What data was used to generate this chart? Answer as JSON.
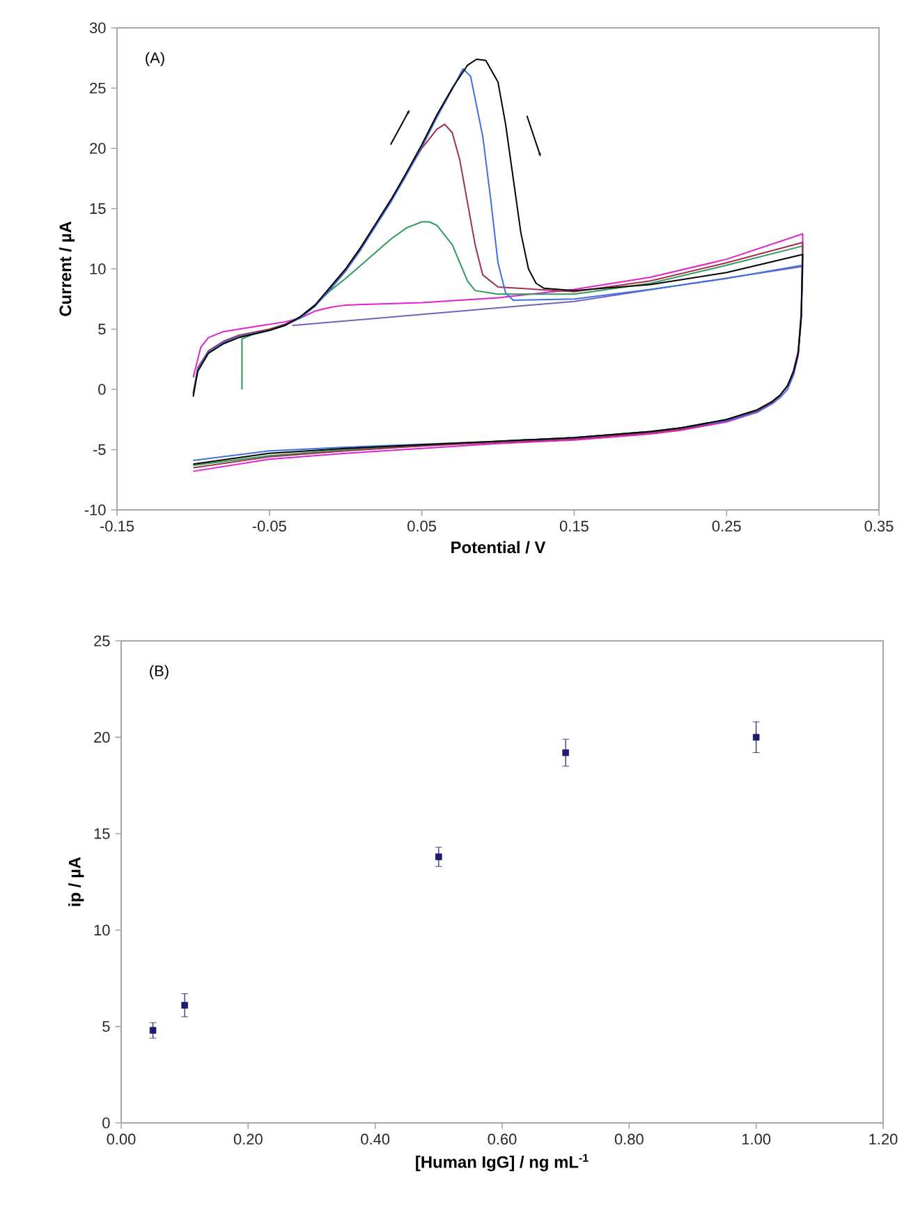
{
  "chart_data": [
    {
      "type": "line",
      "xlabel": "Potential / V",
      "ylabel": "Current / µA",
      "xlim": [
        -0.15,
        0.35
      ],
      "ylim": [
        -10,
        30
      ],
      "xticks": [
        -0.15,
        -0.05,
        0.05,
        0.15,
        0.25,
        0.35
      ],
      "yticks": [
        -10,
        -5,
        0,
        5,
        10,
        15,
        20,
        25,
        30
      ],
      "annotations": [
        "(A)"
      ],
      "series": [
        {
          "color": "#e020d0",
          "x": [
            -0.1,
            -0.095,
            -0.09,
            -0.08,
            -0.06,
            -0.04,
            -0.03,
            -0.02,
            -0.01,
            0,
            0.05,
            0.1,
            0.15,
            0.2,
            0.25,
            0.3,
            0.299,
            0.297,
            0.294,
            0.29,
            0.285,
            0.28,
            0.27,
            0.25,
            0.22,
            0.2,
            0.15,
            0.1,
            0.05,
            0,
            -0.05,
            -0.1
          ],
          "values": [
            1,
            3.5,
            4.3,
            4.8,
            5.2,
            5.6,
            5.9,
            6.5,
            6.8,
            7,
            7.2,
            7.6,
            8.3,
            9.3,
            10.8,
            12.9,
            6.5,
            3.2,
            1.6,
            0.3,
            -0.5,
            -1.1,
            -1.9,
            -2.7,
            -3.4,
            -3.7,
            -4.2,
            -4.5,
            -4.9,
            -5.3,
            -5.8,
            -6.8
          ]
        },
        {
          "color": "#7060c0",
          "x": [
            -0.035,
            0.15,
            0.3
          ],
          "values": [
            5.3,
            7.3,
            10.2
          ]
        },
        {
          "color": "#2e9a5a",
          "x": [
            -0.068,
            -0.068,
            -0.06,
            -0.05,
            -0.04,
            -0.03,
            -0.02,
            -0.01,
            0,
            0.01,
            0.02,
            0.03,
            0.04,
            0.05,
            0.055,
            0.06,
            0.07,
            0.075,
            0.08,
            0.085,
            0.1,
            0.15,
            0.2,
            0.25,
            0.3,
            0.299,
            0.297,
            0.294,
            0.29,
            0.285,
            0.28,
            0.27,
            0.25,
            0.22,
            0.2,
            0.15,
            0.1,
            0.05,
            0,
            -0.05,
            -0.1
          ],
          "values": [
            0,
            4.2,
            4.6,
            4.9,
            5.3,
            6,
            7,
            8.2,
            9.2,
            10.3,
            11.4,
            12.5,
            13.4,
            13.9,
            13.9,
            13.6,
            12,
            10.5,
            9,
            8.2,
            7.9,
            7.9,
            8.8,
            10.3,
            11.9,
            6,
            3,
            1.5,
            0.3,
            -0.5,
            -1,
            -1.7,
            -2.5,
            -3.2,
            -3.5,
            -4,
            -4.3,
            -4.7,
            -5,
            -5.5,
            -6.3
          ]
        },
        {
          "color": "#a0304f",
          "x": [
            -0.1,
            -0.097,
            -0.09,
            -0.08,
            -0.07,
            -0.05,
            -0.04,
            -0.03,
            -0.02,
            -0.01,
            0,
            0.01,
            0.02,
            0.03,
            0.04,
            0.05,
            0.06,
            0.065,
            0.07,
            0.075,
            0.08,
            0.085,
            0.09,
            0.1,
            0.15,
            0.2,
            0.25,
            0.3,
            0.299,
            0.297,
            0.294,
            0.29,
            0.285,
            0.28,
            0.27,
            0.25,
            0.22,
            0.2,
            0.15,
            0.1,
            0.05,
            0,
            -0.05,
            -0.1
          ],
          "values": [
            -0.3,
            1.8,
            3.2,
            4,
            4.5,
            5,
            5.4,
            6,
            7,
            8.4,
            9.9,
            11.7,
            13.7,
            15.7,
            17.9,
            20,
            21.6,
            22,
            21.3,
            19,
            15.5,
            12,
            9.5,
            8.5,
            8.1,
            9,
            10.5,
            12.2,
            6.2,
            3,
            1.5,
            0.3,
            -0.5,
            -1,
            -1.8,
            -2.6,
            -3.3,
            -3.6,
            -4.1,
            -4.4,
            -4.7,
            -5.1,
            -5.6,
            -6.5
          ]
        },
        {
          "color": "#3f6fe0",
          "x": [
            -0.1,
            -0.097,
            -0.09,
            -0.08,
            -0.07,
            -0.05,
            -0.04,
            -0.03,
            -0.02,
            -0.01,
            0,
            0.01,
            0.02,
            0.03,
            0.04,
            0.05,
            0.06,
            0.07,
            0.077,
            0.082,
            0.09,
            0.095,
            0.1,
            0.105,
            0.11,
            0.15,
            0.2,
            0.25,
            0.3,
            0.299,
            0.297,
            0.294,
            0.29,
            0.285,
            0.28,
            0.27,
            0.25,
            0.22,
            0.2,
            0.15,
            0.1,
            0.05,
            0,
            -0.05,
            -0.1
          ],
          "values": [
            -0.4,
            1.7,
            3.1,
            3.9,
            4.4,
            4.9,
            5.3,
            5.9,
            6.9,
            8.3,
            9.8,
            11.6,
            13.6,
            15.6,
            17.8,
            20.1,
            22.6,
            24.9,
            26.6,
            26,
            21,
            16,
            10.5,
            8,
            7.4,
            7.5,
            8.3,
            9.2,
            10.3,
            6,
            2.8,
            1.2,
            0,
            -0.7,
            -1.2,
            -1.9,
            -2.6,
            -3.2,
            -3.5,
            -4,
            -4.3,
            -4.55,
            -4.8,
            -5.1,
            -5.9
          ]
        },
        {
          "color": "#000000",
          "x": [
            -0.1,
            -0.097,
            -0.09,
            -0.08,
            -0.07,
            -0.05,
            -0.04,
            -0.03,
            -0.02,
            -0.01,
            0,
            0.01,
            0.02,
            0.03,
            0.04,
            0.05,
            0.06,
            0.07,
            0.08,
            0.086,
            0.092,
            0.1,
            0.105,
            0.11,
            0.115,
            0.12,
            0.125,
            0.13,
            0.15,
            0.2,
            0.25,
            0.3,
            0.299,
            0.297,
            0.294,
            0.29,
            0.285,
            0.28,
            0.27,
            0.25,
            0.22,
            0.2,
            0.15,
            0.1,
            0.05,
            0,
            -0.05,
            -0.1
          ],
          "values": [
            -0.6,
            1.5,
            3,
            3.8,
            4.3,
            4.9,
            5.3,
            6,
            7,
            8.5,
            10,
            11.8,
            13.8,
            15.8,
            18,
            20.3,
            22.8,
            25,
            26.9,
            27.4,
            27.3,
            25.5,
            22,
            17.5,
            13,
            10,
            8.8,
            8.4,
            8.2,
            8.7,
            9.7,
            11.2,
            6,
            3,
            1.5,
            0.3,
            -0.5,
            -1,
            -1.7,
            -2.5,
            -3.2,
            -3.5,
            -4,
            -4.3,
            -4.6,
            -4.9,
            -5.3,
            -6.2
          ]
        }
      ]
    },
    {
      "type": "scatter",
      "xlabel": "[Human IgG] / ng mL$^{-1}$",
      "ylabel": "ip / µA",
      "xlim": [
        0,
        1.2
      ],
      "ylim": [
        0,
        25
      ],
      "xticks": [
        {
          "value": 0,
          "label": "0.00"
        },
        {
          "value": 0.2,
          "label": "0.20"
        },
        {
          "value": 0.4,
          "label": "0.40"
        },
        {
          "value": 0.6,
          "label": "0.60"
        },
        {
          "value": 0.8,
          "label": "0.80"
        },
        {
          "value": 1.0,
          "label": "1.00"
        },
        {
          "value": 1.2,
          "label": "1.20"
        }
      ],
      "yticks": [
        0,
        5,
        10,
        15,
        20,
        25
      ],
      "annotations": [
        "(B)"
      ],
      "marker": "square",
      "color": "#1c1c70",
      "x": [
        0.05,
        0.1,
        0.5,
        0.7,
        1.0
      ],
      "values": [
        4.8,
        6.1,
        13.8,
        19.2,
        20.0
      ],
      "errors": [
        0.4,
        0.6,
        0.5,
        0.7,
        0.8
      ]
    }
  ]
}
